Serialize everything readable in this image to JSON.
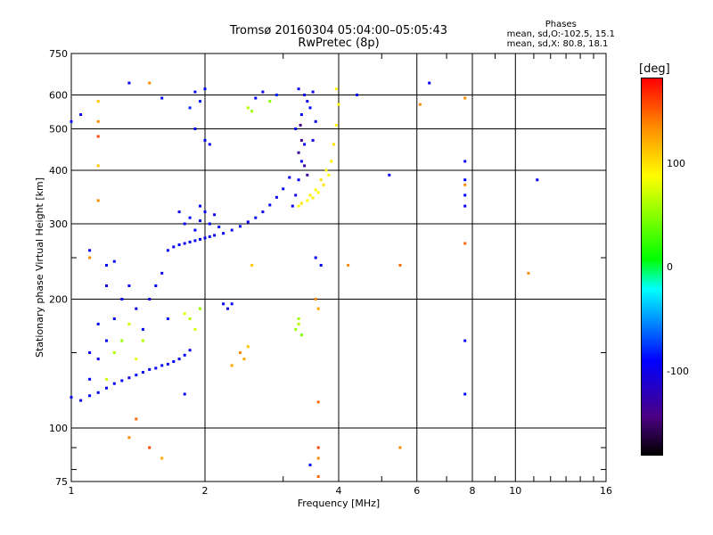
{
  "chart_data": {
    "type": "scatter",
    "title": "Tromsø 20160304 05:04:00–05:05:43",
    "subtitle": "RwPretec (8p)",
    "xlabel": "Frequency [MHz]",
    "ylabel": "Stationary phase Virtual Height [km]",
    "x_scale": "log",
    "y_scale": "log",
    "xlim": [
      1,
      16
    ],
    "ylim": [
      75,
      750
    ],
    "x_ticks": [
      1,
      2,
      4,
      6,
      8,
      10,
      16
    ],
    "y_ticks": [
      75,
      100,
      200,
      300,
      400,
      500,
      600,
      750
    ],
    "grid": true,
    "phases_header": "Phases",
    "phases_lines": [
      "mean, sd,O:-102.5, 15.1",
      "mean, sd,X:  80.8, 18.1"
    ],
    "colorbar": {
      "unit": "[deg]",
      "ticks": [
        100,
        0,
        -100
      ],
      "range": [
        -180,
        180
      ]
    },
    "series": [
      {
        "points": [
          [
            1.0,
            118,
            -105
          ],
          [
            1.05,
            116,
            -105
          ],
          [
            1.1,
            119,
            -100
          ],
          [
            1.15,
            121,
            -105
          ],
          [
            1.2,
            124,
            -100
          ],
          [
            1.25,
            127,
            -105
          ],
          [
            1.3,
            129,
            -100
          ],
          [
            1.35,
            131,
            -110
          ],
          [
            1.4,
            133,
            -100
          ],
          [
            1.45,
            135,
            -105
          ],
          [
            1.5,
            137,
            -100
          ],
          [
            1.55,
            138,
            -105
          ],
          [
            1.6,
            140,
            -100
          ],
          [
            1.65,
            141,
            -105
          ],
          [
            1.7,
            143,
            -100
          ],
          [
            1.75,
            145,
            -105
          ],
          [
            1.8,
            148,
            -100
          ],
          [
            1.85,
            152,
            -105
          ],
          [
            1.1,
            130,
            -100
          ],
          [
            1.15,
            145,
            -105
          ],
          [
            1.2,
            160,
            -100
          ],
          [
            1.25,
            180,
            -105
          ],
          [
            1.3,
            200,
            -100
          ],
          [
            1.35,
            215,
            -105
          ],
          [
            1.4,
            190,
            -110
          ],
          [
            1.45,
            170,
            -100
          ],
          [
            1.5,
            200,
            -105
          ],
          [
            1.55,
            215,
            -100
          ],
          [
            1.6,
            230,
            -105
          ],
          [
            1.65,
            180,
            -100
          ],
          [
            1.2,
            215,
            -105
          ],
          [
            1.25,
            245,
            -100
          ],
          [
            1.1,
            150,
            -105
          ],
          [
            1.15,
            175,
            -100
          ],
          [
            1.25,
            150,
            70
          ],
          [
            1.3,
            160,
            60
          ],
          [
            1.35,
            175,
            80
          ],
          [
            1.4,
            145,
            90
          ],
          [
            1.45,
            160,
            70
          ],
          [
            1.9,
            170,
            80
          ],
          [
            1.85,
            180,
            70
          ],
          [
            1.8,
            185,
            90
          ],
          [
            1.95,
            190,
            60
          ],
          [
            1.2,
            130,
            80
          ],
          [
            1.65,
            260,
            -100
          ],
          [
            1.7,
            265,
            -105
          ],
          [
            1.75,
            268,
            -100
          ],
          [
            1.8,
            270,
            -105
          ],
          [
            1.85,
            272,
            -100
          ],
          [
            1.9,
            274,
            -105
          ],
          [
            1.95,
            276,
            -100
          ],
          [
            2.0,
            278,
            -105
          ],
          [
            2.05,
            280,
            -100
          ],
          [
            2.1,
            282,
            -105
          ],
          [
            2.2,
            285,
            -100
          ],
          [
            2.3,
            290,
            -105
          ],
          [
            2.4,
            296,
            -100
          ],
          [
            2.5,
            303,
            -105
          ],
          [
            2.6,
            310,
            -100
          ],
          [
            2.7,
            320,
            -105
          ],
          [
            2.8,
            332,
            -100
          ],
          [
            2.9,
            346,
            -105
          ],
          [
            3.0,
            362,
            -100
          ],
          [
            3.1,
            385,
            -105
          ],
          [
            1.8,
            300,
            -105
          ],
          [
            1.85,
            310,
            -100
          ],
          [
            1.9,
            290,
            -105
          ],
          [
            1.95,
            305,
            -100
          ],
          [
            2.0,
            320,
            -105
          ],
          [
            2.05,
            300,
            -100
          ],
          [
            2.1,
            315,
            -105
          ],
          [
            2.15,
            295,
            -100
          ],
          [
            1.75,
            320,
            -105
          ],
          [
            1.95,
            330,
            -100
          ],
          [
            3.15,
            330,
            -105
          ],
          [
            3.2,
            350,
            -110
          ],
          [
            3.25,
            380,
            -100
          ],
          [
            3.3,
            420,
            -105
          ],
          [
            3.35,
            460,
            -110
          ],
          [
            3.2,
            500,
            -105
          ],
          [
            3.3,
            540,
            -100
          ],
          [
            3.4,
            580,
            -105
          ],
          [
            3.5,
            610,
            -110
          ],
          [
            3.25,
            620,
            -100
          ],
          [
            3.35,
            600,
            -105
          ],
          [
            3.45,
            560,
            -100
          ],
          [
            3.55,
            520,
            -105
          ],
          [
            3.5,
            470,
            -110
          ],
          [
            3.25,
            440,
            -140
          ],
          [
            3.3,
            470,
            -145
          ],
          [
            3.35,
            410,
            -135
          ],
          [
            3.4,
            390,
            -140
          ],
          [
            3.28,
            510,
            -145
          ],
          [
            3.25,
            330,
            100
          ],
          [
            3.3,
            335,
            110
          ],
          [
            3.4,
            340,
            100
          ],
          [
            3.5,
            345,
            105
          ],
          [
            3.6,
            355,
            100
          ],
          [
            3.7,
            370,
            110
          ],
          [
            3.8,
            390,
            100
          ],
          [
            3.85,
            420,
            105
          ],
          [
            3.9,
            460,
            110
          ],
          [
            3.95,
            510,
            100
          ],
          [
            4.0,
            570,
            100
          ],
          [
            3.95,
            620,
            100
          ],
          [
            3.45,
            350,
            105
          ],
          [
            3.55,
            360,
            100
          ],
          [
            3.65,
            380,
            110
          ],
          [
            3.75,
            400,
            100
          ],
          [
            3.2,
            170,
            60
          ],
          [
            3.25,
            175,
            70
          ],
          [
            3.3,
            165,
            50
          ],
          [
            3.25,
            180,
            60
          ],
          [
            2.0,
            470,
            -100
          ],
          [
            2.05,
            460,
            -105
          ],
          [
            1.9,
            500,
            -100
          ],
          [
            1.9,
            610,
            -105
          ],
          [
            2.0,
            620,
            -100
          ],
          [
            1.85,
            560,
            -90
          ],
          [
            1.95,
            580,
            -95
          ],
          [
            2.5,
            560,
            70
          ],
          [
            2.55,
            550,
            60
          ],
          [
            2.8,
            580,
            50
          ],
          [
            2.9,
            600,
            -90
          ],
          [
            2.6,
            590,
            -100
          ],
          [
            2.7,
            610,
            -105
          ],
          [
            1.15,
            580,
            120
          ],
          [
            1.15,
            520,
            140
          ],
          [
            1.15,
            480,
            160
          ],
          [
            1.15,
            410,
            120
          ],
          [
            1.15,
            340,
            140
          ],
          [
            1.0,
            520,
            -100
          ],
          [
            1.05,
            540,
            -105
          ],
          [
            1.35,
            640,
            -105
          ],
          [
            1.5,
            640,
            140
          ],
          [
            1.6,
            590,
            -100
          ],
          [
            1.1,
            250,
            140
          ],
          [
            1.2,
            240,
            -100
          ],
          [
            1.1,
            260,
            -105
          ],
          [
            1.4,
            105,
            150
          ],
          [
            1.5,
            90,
            160
          ],
          [
            1.6,
            85,
            130
          ],
          [
            1.8,
            120,
            -100
          ],
          [
            1.35,
            95,
            140
          ],
          [
            2.4,
            150,
            140
          ],
          [
            2.45,
            145,
            130
          ],
          [
            2.5,
            155,
            120
          ],
          [
            2.3,
            140,
            130
          ],
          [
            2.2,
            195,
            -100
          ],
          [
            2.25,
            190,
            -105
          ],
          [
            2.3,
            195,
            -100
          ],
          [
            2.55,
            240,
            120
          ],
          [
            3.55,
            200,
            140
          ],
          [
            3.6,
            190,
            130
          ],
          [
            3.55,
            250,
            -100
          ],
          [
            3.65,
            240,
            -105
          ],
          [
            3.6,
            115,
            150
          ],
          [
            3.6,
            90,
            160
          ],
          [
            3.6,
            85,
            140
          ],
          [
            3.6,
            77,
            150
          ],
          [
            3.45,
            82,
            -100
          ],
          [
            4.4,
            600,
            -100
          ],
          [
            4.2,
            240,
            140
          ],
          [
            5.2,
            390,
            -105
          ],
          [
            5.5,
            240,
            150
          ],
          [
            5.5,
            90,
            140
          ],
          [
            6.4,
            640,
            -105
          ],
          [
            6.1,
            570,
            140
          ],
          [
            7.7,
            420,
            -105
          ],
          [
            7.7,
            380,
            -100
          ],
          [
            7.7,
            370,
            140
          ],
          [
            7.7,
            350,
            -100
          ],
          [
            7.7,
            330,
            -105
          ],
          [
            7.7,
            270,
            150
          ],
          [
            7.7,
            160,
            -105
          ],
          [
            7.7,
            120,
            -100
          ],
          [
            7.7,
            590,
            140
          ],
          [
            10.7,
            230,
            140
          ],
          [
            11.2,
            380,
            -105
          ]
        ]
      }
    ]
  }
}
